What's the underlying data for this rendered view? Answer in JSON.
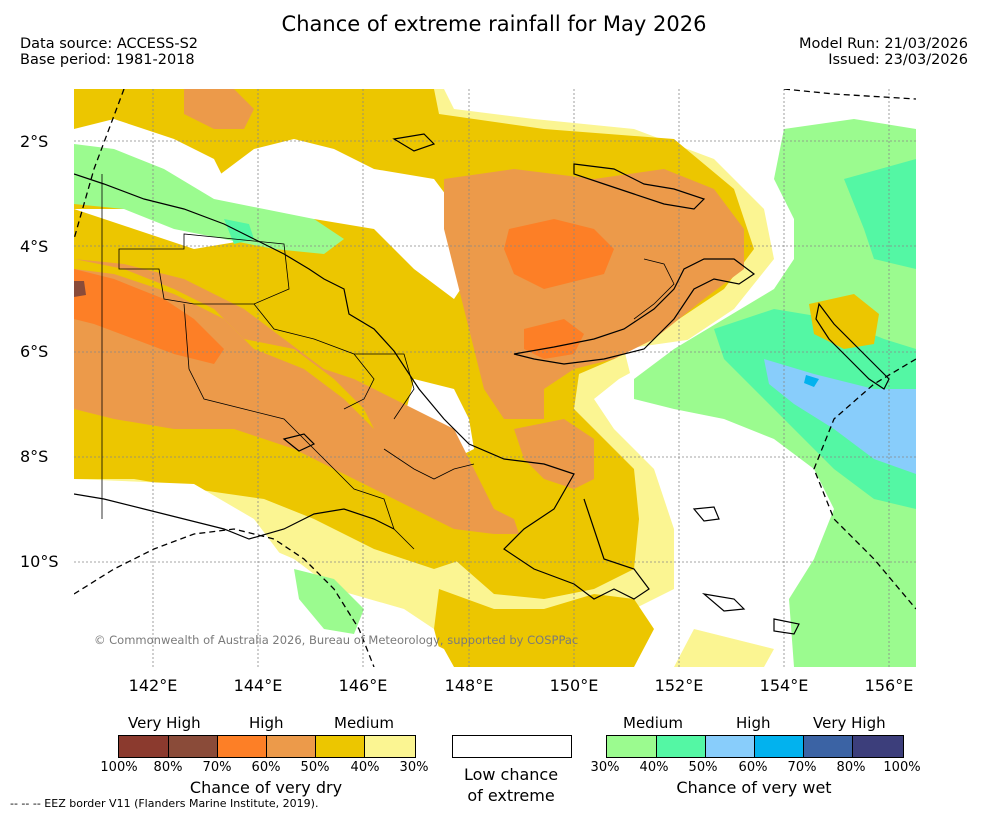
{
  "title": "Chance of extreme rainfall for May 2026",
  "data_source": "Data source: ACCESS-S2",
  "base_period": "Base period: 1981-2018",
  "model_run": "Model Run: 21/03/2026",
  "issued": "Issued: 23/03/2026",
  "latitude_labels": [
    "2°S",
    "4°S",
    "6°S",
    "8°S",
    "10°S"
  ],
  "longitude_labels": [
    "142°E",
    "144°E",
    "146°E",
    "148°E",
    "150°E",
    "152°E",
    "154°E",
    "156°E"
  ],
  "copyright": "© Commonwealth of Australia 2026, Bureau of Meteorology, supported by COSPPac",
  "legend": {
    "dry": {
      "categories": [
        "Very High",
        "High",
        "Medium"
      ],
      "colors": [
        "#8b3a2e",
        "#8a4b39",
        "#fd7f26",
        "#ec9a4a",
        "#ecc600",
        "#fbf592"
      ],
      "ticks": [
        "100%",
        "80%",
        "70%",
        "60%",
        "50%",
        "40%",
        "30%"
      ],
      "label": "Chance of very dry"
    },
    "low": {
      "label_line1": "Low chance",
      "label_line2": "of extreme"
    },
    "wet": {
      "categories": [
        "Medium",
        "High",
        "Very High"
      ],
      "colors": [
        "#9bfb8f",
        "#54f7a4",
        "#88cdfb",
        "#02b2ee",
        "#3b63a4",
        "#3c3e7b"
      ],
      "ticks": [
        "30%",
        "40%",
        "50%",
        "60%",
        "70%",
        "80%",
        "100%"
      ],
      "label": "Chance of very wet"
    }
  },
  "eez_note": "-- -- -- EEZ border V11 (Flanders Marine Institute, 2019)."
}
